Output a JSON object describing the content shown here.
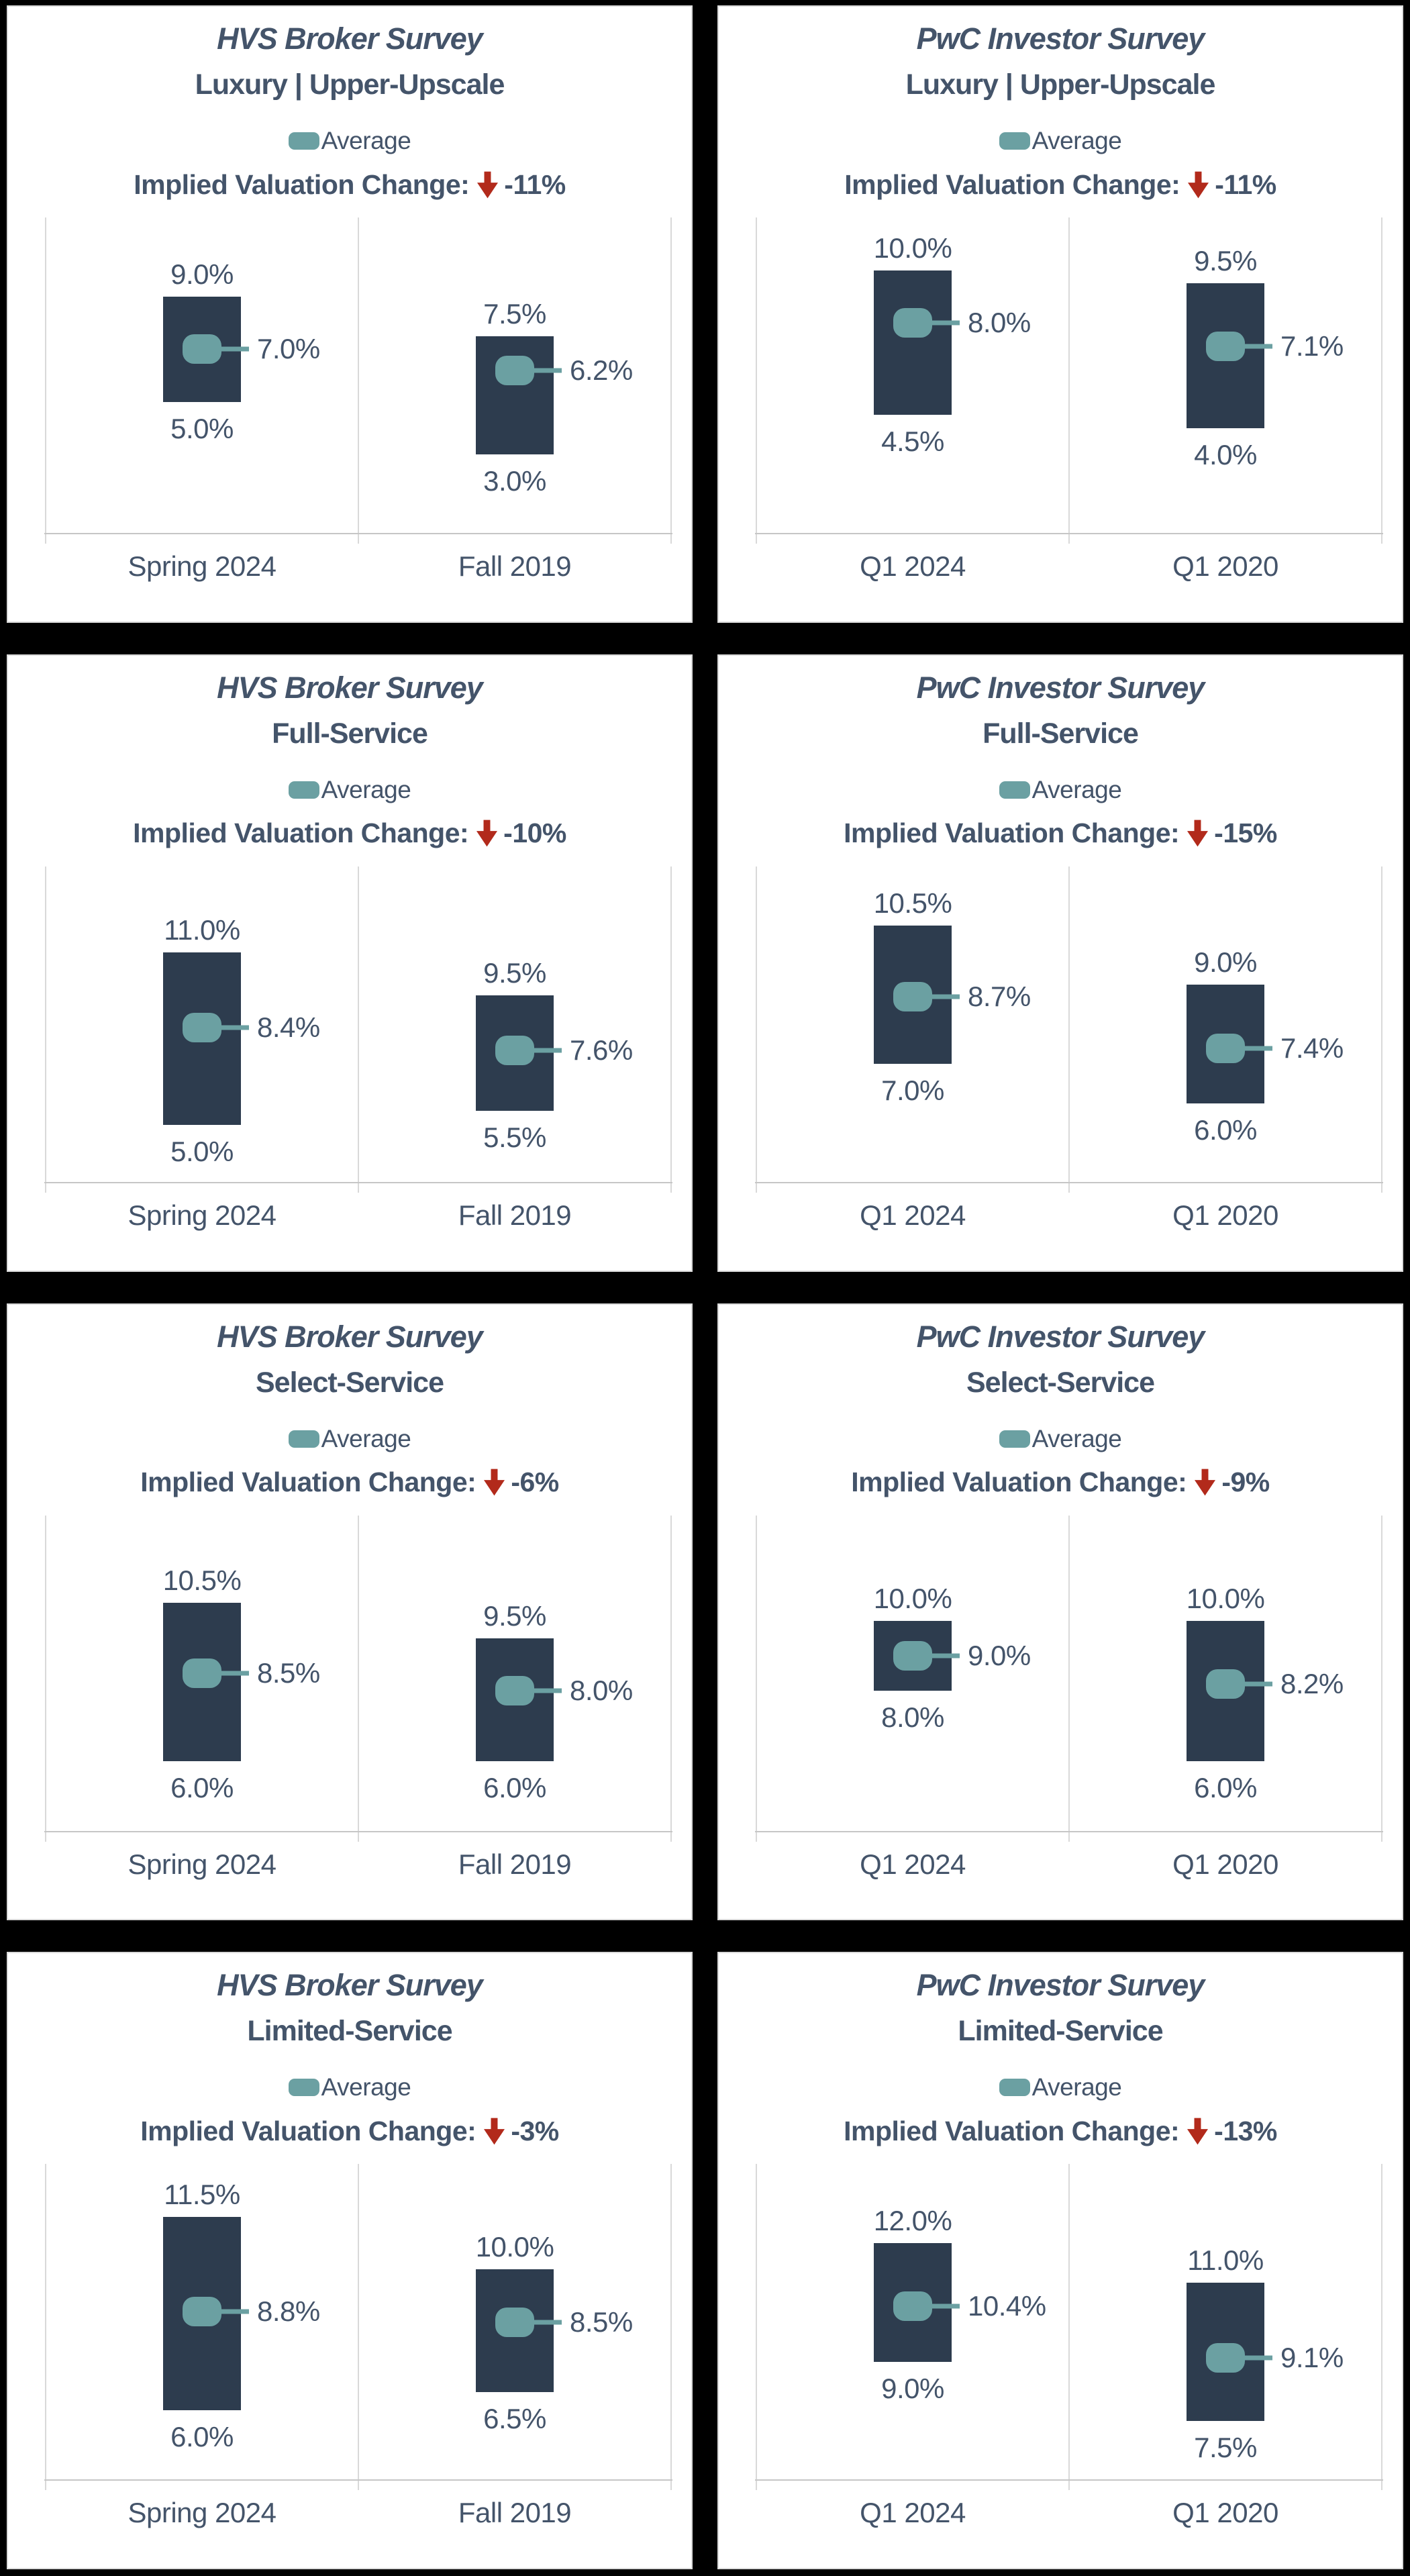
{
  "page": {
    "background": "#000000"
  },
  "colors": {
    "text": "#44546A",
    "bar": "#2D3C4E",
    "average_marker": "#6BA0A2",
    "arrow_red": "#B22A1B",
    "panel_border": "#D9D9D9",
    "gridline": "#D9D9D9"
  },
  "chart_data": [
    {
      "id": "hvs-broker-luxury-upper-upscale",
      "type": "range-bar",
      "title": "HVS Broker Survey",
      "subtitle": "Luxury | Upper-Upscale",
      "legend_label": "Average",
      "legend_position": "top",
      "ivc_label": "Implied Valuation Change:",
      "ivc_value": "-11%",
      "categories": [
        "Spring 2024",
        "Fall 2019"
      ],
      "series": [
        {
          "name": "High",
          "values": [
            9.0,
            7.5
          ]
        },
        {
          "name": "Low",
          "values": [
            5.0,
            3.0
          ]
        },
        {
          "name": "Average",
          "values": [
            7.0,
            6.2
          ]
        }
      ],
      "data_labels": {
        "high": [
          "9.0%",
          "7.5%"
        ],
        "low": [
          "5.0%",
          "3.0%"
        ],
        "average": [
          "7.0%",
          "6.2%"
        ]
      },
      "ylim": [
        0,
        12
      ],
      "grid": "vertical-dividers-only"
    },
    {
      "id": "pwc-investor-luxury-upper-upscale",
      "type": "range-bar",
      "title": "PwC Investor Survey",
      "subtitle": "Luxury | Upper-Upscale",
      "legend_label": "Average",
      "legend_position": "top",
      "ivc_label": "Implied Valuation Change:",
      "ivc_value": "-11%",
      "categories": [
        "Q1 2024",
        "Q1 2020"
      ],
      "series": [
        {
          "name": "High",
          "values": [
            10.0,
            9.5
          ]
        },
        {
          "name": "Low",
          "values": [
            4.5,
            4.0
          ]
        },
        {
          "name": "Average",
          "values": [
            8.0,
            7.1
          ]
        }
      ],
      "data_labels": {
        "high": [
          "10.0%",
          "9.5%"
        ],
        "low": [
          "4.5%",
          "4.0%"
        ],
        "average": [
          "8.0%",
          "7.1%"
        ]
      },
      "ylim": [
        0,
        12
      ],
      "grid": "vertical-dividers-only"
    },
    {
      "id": "hvs-broker-full-service",
      "type": "range-bar",
      "title": "HVS Broker Survey",
      "subtitle": "Full-Service",
      "legend_label": "Average",
      "legend_position": "top",
      "ivc_label": "Implied Valuation Change:",
      "ivc_value": "-10%",
      "categories": [
        "Spring 2024",
        "Fall 2019"
      ],
      "series": [
        {
          "name": "High",
          "values": [
            11.0,
            9.5
          ]
        },
        {
          "name": "Low",
          "values": [
            5.0,
            5.5
          ]
        },
        {
          "name": "Average",
          "values": [
            8.4,
            7.6
          ]
        }
      ],
      "data_labels": {
        "high": [
          "11.0%",
          "9.5%"
        ],
        "low": [
          "5.0%",
          "5.5%"
        ],
        "average": [
          "8.4%",
          "7.6%"
        ]
      },
      "ylim": [
        3,
        14
      ],
      "grid": "vertical-dividers-only"
    },
    {
      "id": "pwc-investor-full-service",
      "type": "range-bar",
      "title": "PwC Investor Survey",
      "subtitle": "Full-Service",
      "legend_label": "Average",
      "legend_position": "top",
      "ivc_label": "Implied Valuation Change:",
      "ivc_value": "-15%",
      "categories": [
        "Q1 2024",
        "Q1 2020"
      ],
      "series": [
        {
          "name": "High",
          "values": [
            10.5,
            9.0
          ]
        },
        {
          "name": "Low",
          "values": [
            7.0,
            6.0
          ]
        },
        {
          "name": "Average",
          "values": [
            8.7,
            7.4
          ]
        }
      ],
      "data_labels": {
        "high": [
          "10.5%",
          "9.0%"
        ],
        "low": [
          "7.0%",
          "6.0%"
        ],
        "average": [
          "8.7%",
          "7.4%"
        ]
      },
      "ylim": [
        4,
        12
      ],
      "grid": "vertical-dividers-only"
    },
    {
      "id": "hvs-broker-select-service",
      "type": "range-bar",
      "title": "HVS Broker Survey",
      "subtitle": "Select-Service",
      "legend_label": "Average",
      "legend_position": "top",
      "ivc_label": "Implied Valuation Change:",
      "ivc_value": "-6%",
      "categories": [
        "Spring 2024",
        "Fall 2019"
      ],
      "series": [
        {
          "name": "High",
          "values": [
            10.5,
            9.5
          ]
        },
        {
          "name": "Low",
          "values": [
            6.0,
            6.0
          ]
        },
        {
          "name": "Average",
          "values": [
            8.5,
            8.0
          ]
        }
      ],
      "data_labels": {
        "high": [
          "10.5%",
          "9.5%"
        ],
        "low": [
          "6.0%",
          "6.0%"
        ],
        "average": [
          "8.5%",
          "8.0%"
        ]
      },
      "ylim": [
        4,
        13
      ],
      "grid": "vertical-dividers-only"
    },
    {
      "id": "pwc-investor-select-service",
      "type": "range-bar",
      "title": "PwC Investor Survey",
      "subtitle": "Select-Service",
      "legend_label": "Average",
      "legend_position": "top",
      "ivc_label": "Implied Valuation Change:",
      "ivc_value": "-9%",
      "categories": [
        "Q1 2024",
        "Q1 2020"
      ],
      "series": [
        {
          "name": "High",
          "values": [
            10.0,
            10.0
          ]
        },
        {
          "name": "Low",
          "values": [
            8.0,
            6.0
          ]
        },
        {
          "name": "Average",
          "values": [
            9.0,
            8.2
          ]
        }
      ],
      "data_labels": {
        "high": [
          "10.0%",
          "10.0%"
        ],
        "low": [
          "8.0%",
          "6.0%"
        ],
        "average": [
          "9.0%",
          "8.2%"
        ]
      },
      "ylim": [
        4,
        13
      ],
      "grid": "vertical-dividers-only"
    },
    {
      "id": "hvs-broker-limited-service",
      "type": "range-bar",
      "title": "HVS Broker Survey",
      "subtitle": "Limited-Service",
      "legend_label": "Average",
      "legend_position": "top",
      "ivc_label": "Implied Valuation Change:",
      "ivc_value": "-3%",
      "categories": [
        "Spring 2024",
        "Fall 2019"
      ],
      "series": [
        {
          "name": "High",
          "values": [
            11.5,
            10.0
          ]
        },
        {
          "name": "Low",
          "values": [
            6.0,
            6.5
          ]
        },
        {
          "name": "Average",
          "values": [
            8.8,
            8.5
          ]
        }
      ],
      "data_labels": {
        "high": [
          "11.5%",
          "10.0%"
        ],
        "low": [
          "6.0%",
          "6.5%"
        ],
        "average": [
          "8.8%",
          "8.5%"
        ]
      },
      "ylim": [
        4,
        13
      ],
      "grid": "vertical-dividers-only"
    },
    {
      "id": "pwc-investor-limited-service",
      "type": "range-bar",
      "title": "PwC Investor Survey",
      "subtitle": "Limited-Service",
      "legend_label": "Average",
      "legend_position": "top",
      "ivc_label": "Implied Valuation Change:",
      "ivc_value": "-13%",
      "categories": [
        "Q1 2024",
        "Q1 2020"
      ],
      "series": [
        {
          "name": "High",
          "values": [
            12.0,
            11.0
          ]
        },
        {
          "name": "Low",
          "values": [
            9.0,
            7.5
          ]
        },
        {
          "name": "Average",
          "values": [
            10.4,
            9.1
          ]
        }
      ],
      "data_labels": {
        "high": [
          "12.0%",
          "11.0%"
        ],
        "low": [
          "9.0%",
          "7.5%"
        ],
        "average": [
          "10.4%",
          "9.1%"
        ]
      },
      "ylim": [
        6,
        14
      ],
      "grid": "vertical-dividers-only"
    }
  ]
}
